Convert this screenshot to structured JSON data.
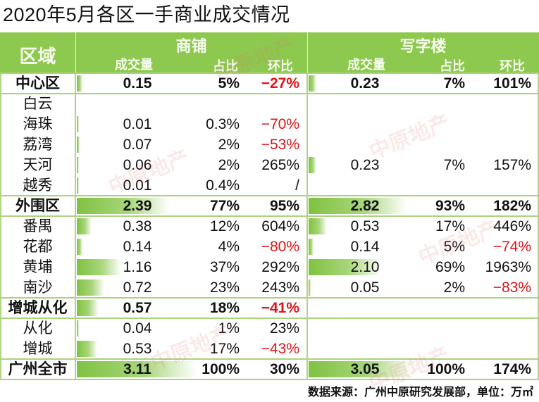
{
  "title": "2020年5月各区一手商业成交情况",
  "header": {
    "region": "区域",
    "shop": {
      "label": "商铺",
      "vol": "成交量",
      "pct": "占比",
      "mom": "环比"
    },
    "office": {
      "label": "写字楼",
      "vol": "成交量",
      "pct": "占比",
      "mom": "环比"
    }
  },
  "colors": {
    "header_green": "#8cc94e",
    "bar_green": "#7fc241",
    "negative": "#e0141a",
    "grid": "#a9d37c"
  },
  "rows": [
    {
      "region": "中心区",
      "bold": true,
      "shop": {
        "vol": "0.15",
        "pct": "5%",
        "mom": "-27%",
        "mom_neg": true
      },
      "office": {
        "vol": "0.23",
        "pct": "7%",
        "mom": "101%",
        "mom_neg": false
      }
    },
    {
      "region": "白云",
      "bold": false,
      "shop": {
        "vol": "",
        "pct": "",
        "mom": ""
      },
      "office": {
        "vol": "",
        "pct": "",
        "mom": ""
      }
    },
    {
      "region": "海珠",
      "bold": false,
      "shop": {
        "vol": "0.01",
        "pct": "0.3%",
        "mom": "-70%",
        "mom_neg": true
      },
      "office": {
        "vol": "",
        "pct": "",
        "mom": ""
      }
    },
    {
      "region": "荔湾",
      "bold": false,
      "shop": {
        "vol": "0.07",
        "pct": "2%",
        "mom": "-53%",
        "mom_neg": true
      },
      "office": {
        "vol": "",
        "pct": "",
        "mom": ""
      }
    },
    {
      "region": "天河",
      "bold": false,
      "shop": {
        "vol": "0.06",
        "pct": "2%",
        "mom": "265%",
        "mom_neg": false
      },
      "office": {
        "vol": "0.23",
        "pct": "7%",
        "mom": "157%",
        "mom_neg": false
      }
    },
    {
      "region": "越秀",
      "bold": false,
      "shop": {
        "vol": "0.01",
        "pct": "0.4%",
        "mom": "/",
        "mom_neg": false
      },
      "office": {
        "vol": "",
        "pct": "",
        "mom": ""
      }
    },
    {
      "region": "外围区",
      "bold": true,
      "shop": {
        "vol": "2.39",
        "pct": "77%",
        "mom": "95%",
        "mom_neg": false
      },
      "office": {
        "vol": "2.82",
        "pct": "93%",
        "mom": "182%",
        "mom_neg": false
      }
    },
    {
      "region": "番禺",
      "bold": false,
      "shop": {
        "vol": "0.38",
        "pct": "12%",
        "mom": "604%",
        "mom_neg": false
      },
      "office": {
        "vol": "0.53",
        "pct": "17%",
        "mom": "446%",
        "mom_neg": false
      }
    },
    {
      "region": "花都",
      "bold": false,
      "shop": {
        "vol": "0.14",
        "pct": "4%",
        "mom": "-80%",
        "mom_neg": true
      },
      "office": {
        "vol": "0.14",
        "pct": "5%",
        "mom": "-74%",
        "mom_neg": true
      }
    },
    {
      "region": "黄埔",
      "bold": false,
      "shop": {
        "vol": "1.16",
        "pct": "37%",
        "mom": "292%",
        "mom_neg": false
      },
      "office": {
        "vol": "2.10",
        "pct": "69%",
        "mom": "1963%",
        "mom_neg": false
      }
    },
    {
      "region": "南沙",
      "bold": false,
      "shop": {
        "vol": "0.72",
        "pct": "23%",
        "mom": "243%",
        "mom_neg": false
      },
      "office": {
        "vol": "0.05",
        "pct": "2%",
        "mom": "-83%",
        "mom_neg": true
      }
    },
    {
      "region": "增城从化",
      "bold": true,
      "shop": {
        "vol": "0.57",
        "pct": "18%",
        "mom": "-41%",
        "mom_neg": true
      },
      "office": {
        "vol": "",
        "pct": "",
        "mom": ""
      }
    },
    {
      "region": "从化",
      "bold": false,
      "shop": {
        "vol": "0.04",
        "pct": "1%",
        "mom": "23%",
        "mom_neg": false
      },
      "office": {
        "vol": "",
        "pct": "",
        "mom": ""
      }
    },
    {
      "region": "增城",
      "bold": false,
      "shop": {
        "vol": "0.53",
        "pct": "17%",
        "mom": "-43%",
        "mom_neg": true
      },
      "office": {
        "vol": "",
        "pct": "",
        "mom": ""
      }
    },
    {
      "region": "广州全市",
      "bold": true,
      "shop": {
        "vol": "3.11",
        "pct": "100%",
        "mom": "30%",
        "mom_neg": false
      },
      "office": {
        "vol": "3.05",
        "pct": "100%",
        "mom": "174%",
        "mom_neg": false
      }
    }
  ],
  "footer": "数据来源：广州中原研究发展部，单位：万㎡",
  "watermark": "中原地产"
}
